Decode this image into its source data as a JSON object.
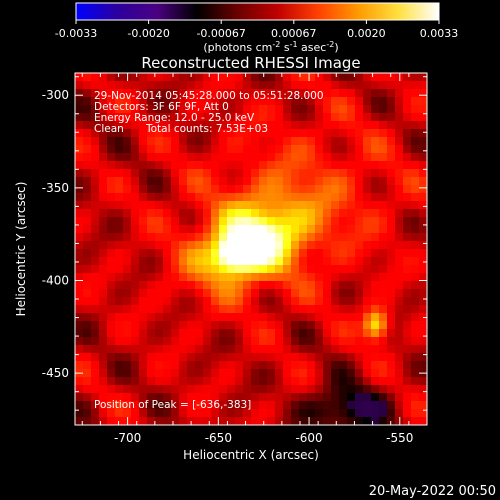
{
  "colorbar": {
    "ticks": [
      "-0.0033",
      "-0.0020",
      "-0.00067",
      "0.00067",
      "0.0020",
      "0.0033"
    ],
    "unit_main": "(photons cm",
    "unit_sup1": "-2",
    "unit_mid1": " s",
    "unit_sup2": "-1",
    "unit_mid2": " asec",
    "unit_sup3": "-2",
    "unit_end": ")",
    "colors": [
      "#0000ff",
      "#2a00a0",
      "#4b0082",
      "#000000",
      "#6a0000",
      "#c00000",
      "#ff4000",
      "#ff9a00",
      "#ffe040",
      "#ffffff"
    ]
  },
  "chart_data": {
    "type": "heatmap",
    "title": "Reconstructed RHESSI Image",
    "xlabel": "Heliocentric X (arcsec)",
    "ylabel": "Heliocentric Y (arcsec)",
    "xlim": [
      -729,
      -535
    ],
    "ylim": [
      -478,
      -288
    ],
    "x_ticks": [
      -700,
      -650,
      -600,
      -550
    ],
    "y_ticks": [
      -300,
      -350,
      -400,
      -450
    ],
    "annotations": {
      "time_range": "29-Nov-2014 05:45:28.000 to 05:51:28.000",
      "detectors": "Detectors: 3F 6F 9F, Att 0",
      "energy": "Energy Range: 12.0 - 25.0 keV",
      "method": "Clean",
      "counts": "Total counts: 7.53E+03",
      "peak": "Position of Peak = [-636,-383]"
    },
    "sources": [
      {
        "x": -636,
        "y": -383,
        "amplitude": 1.0,
        "sigma_x": 9,
        "sigma_y": 6,
        "angle": 25
      },
      {
        "x": -632,
        "y": -380,
        "amplitude": 0.55,
        "sigma_x": 22,
        "sigma_y": 14,
        "angle": 25
      },
      {
        "x": -563,
        "y": -424,
        "amplitude": 0.55,
        "sigma_x": 5,
        "sigma_y": 6,
        "angle": 0
      },
      {
        "x": -610,
        "y": -360,
        "amplitude": 0.2,
        "sigma_x": 40,
        "sigma_y": 30,
        "angle": 20
      }
    ],
    "negative_region": {
      "x": -580,
      "y": -470,
      "amplitude": -0.35,
      "sigma_x": 14,
      "sigma_y": 9
    },
    "background_level": 0.25
  },
  "footer": {
    "date": "20-May-2022 00:50"
  }
}
